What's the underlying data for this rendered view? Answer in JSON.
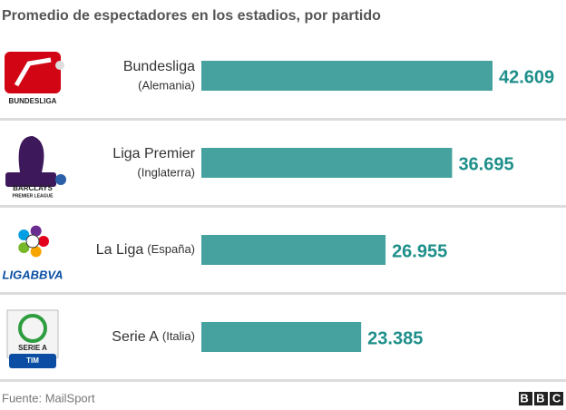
{
  "chart_data": {
    "type": "bar",
    "orientation": "horizontal",
    "title": "Promedio de espectadores en los estadios, por partido",
    "categories": [
      "Bundesliga",
      "Liga Premier",
      "La Liga",
      "Serie A"
    ],
    "countries": [
      "(Alemania)",
      "(Inglaterra)",
      "(España)",
      "(Italia)"
    ],
    "logo_texts": [
      [
        "BUNDESLIGA"
      ],
      [
        "BARCLAYS",
        "PREMIER LEAGUE"
      ],
      [
        "LIGABBVA"
      ],
      [
        "SERIE A",
        "TIM"
      ]
    ],
    "values": [
      42609,
      36695,
      26955,
      23385
    ],
    "value_labels": [
      "42.609",
      "36.695",
      "26.955",
      "23.385"
    ],
    "color": "#45a29f",
    "source": "Fuente: MailSport",
    "logo": "BBC"
  }
}
